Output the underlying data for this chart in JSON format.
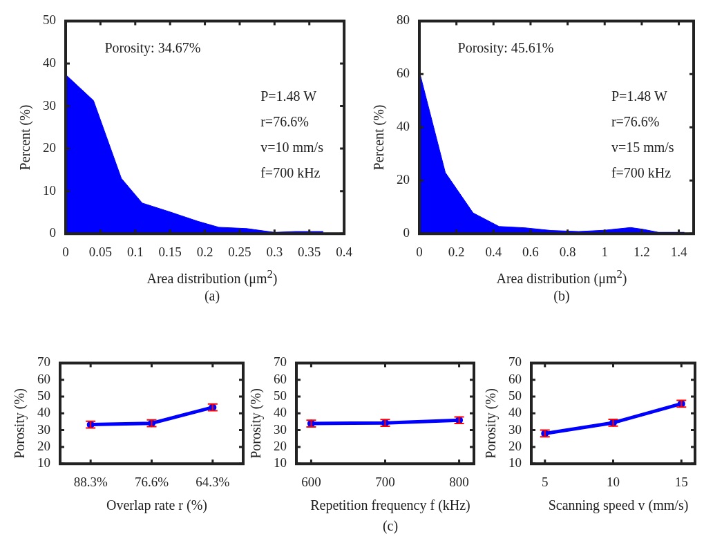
{
  "chart_data": [
    {
      "type": "area",
      "xlabel": "Area distribution (μm$^{2}$)",
      "ylabel": "Percent (%)",
      "x": [
        0,
        0.04,
        0.08,
        0.11,
        0.15,
        0.19,
        0.22,
        0.26,
        0.3,
        0.33,
        0.37
      ],
      "series": [
        {
          "color": "#0000ff",
          "values": [
            37.4,
            31.3,
            13.0,
            7.2,
            5.1,
            2.9,
            1.5,
            1.2,
            0.3,
            0.5,
            0.5
          ]
        }
      ],
      "xlim": [
        0,
        0.4
      ],
      "xticks": [
        0,
        0.05,
        0.1,
        0.15,
        0.2,
        0.25,
        0.3,
        0.35,
        0.4
      ],
      "ylim": [
        0,
        50
      ],
      "yticks": [
        0,
        10,
        20,
        30,
        40,
        50
      ],
      "annotations": [
        "Porosity: 34.67%",
        "P=1.48 W",
        "r=76.6%",
        "v=10 mm/s",
        "f=700 kHz",
        "(a)"
      ]
    },
    {
      "type": "area",
      "xlabel": "Area distribution (μm$^{2}$)",
      "ylabel": "Percent (%)",
      "x": [
        0,
        0.14,
        0.29,
        0.43,
        0.57,
        0.71,
        0.86,
        1.0,
        1.14,
        1.21,
        1.29,
        1.43
      ],
      "series": [
        {
          "color": "#0000ff",
          "values": [
            61,
            23,
            7.8,
            2.7,
            2.2,
            1.2,
            0.8,
            1.3,
            2.3,
            1.6,
            0.5,
            0.5
          ]
        }
      ],
      "xlim": [
        0,
        1.48
      ],
      "xticks": [
        0,
        0.2,
        0.4,
        0.6,
        0.8,
        1,
        1.2,
        1.4
      ],
      "ylim": [
        0,
        80
      ],
      "yticks": [
        0,
        20,
        40,
        60,
        80
      ],
      "annotations": [
        "Porosity: 45.61%",
        "P=1.48 W",
        "r=76.6%",
        "v=15 mm/s",
        "f=700 kHz",
        "(b)"
      ]
    },
    {
      "type": "line",
      "xlabel": "Overlap rate r (%)",
      "ylabel": "Porosity (%)",
      "categories": [
        "88.3%",
        "76.6%",
        "64.3%"
      ],
      "series": [
        {
          "color": "#0000ff",
          "values": [
            33.3,
            34.1,
            43.6
          ],
          "errors": [
            2,
            2,
            2
          ]
        }
      ],
      "marker": "circle",
      "ylim": [
        10,
        70
      ],
      "yticks": [
        10,
        20,
        30,
        40,
        50,
        60,
        70
      ]
    },
    {
      "type": "line",
      "xlabel": "Repetition frequency f (kHz)",
      "ylabel": "Porosity (%)",
      "x": [
        600,
        700,
        800
      ],
      "series": [
        {
          "color": "#0000ff",
          "values": [
            33.9,
            34.3,
            35.9
          ],
          "errors": [
            2,
            2,
            2
          ]
        }
      ],
      "marker": "circle",
      "xlim": [
        580,
        820
      ],
      "xticks": [
        600,
        700,
        800
      ],
      "ylim": [
        10,
        70
      ],
      "yticks": [
        10,
        20,
        30,
        40,
        50,
        60,
        70
      ],
      "annotations": [
        "(c)"
      ]
    },
    {
      "type": "line",
      "xlabel": "Scanning speed v (mm/s)",
      "ylabel": "Porosity (%)",
      "x": [
        5,
        10,
        15
      ],
      "series": [
        {
          "color": "#0000ff",
          "values": [
            28.0,
            34.4,
            45.7
          ],
          "errors": [
            2,
            2,
            2
          ]
        }
      ],
      "marker": "circle",
      "xlim": [
        4,
        16
      ],
      "xticks": [
        5,
        10,
        15
      ],
      "ylim": [
        10,
        70
      ],
      "yticks": [
        10,
        20,
        30,
        40,
        50,
        60,
        70
      ]
    }
  ]
}
